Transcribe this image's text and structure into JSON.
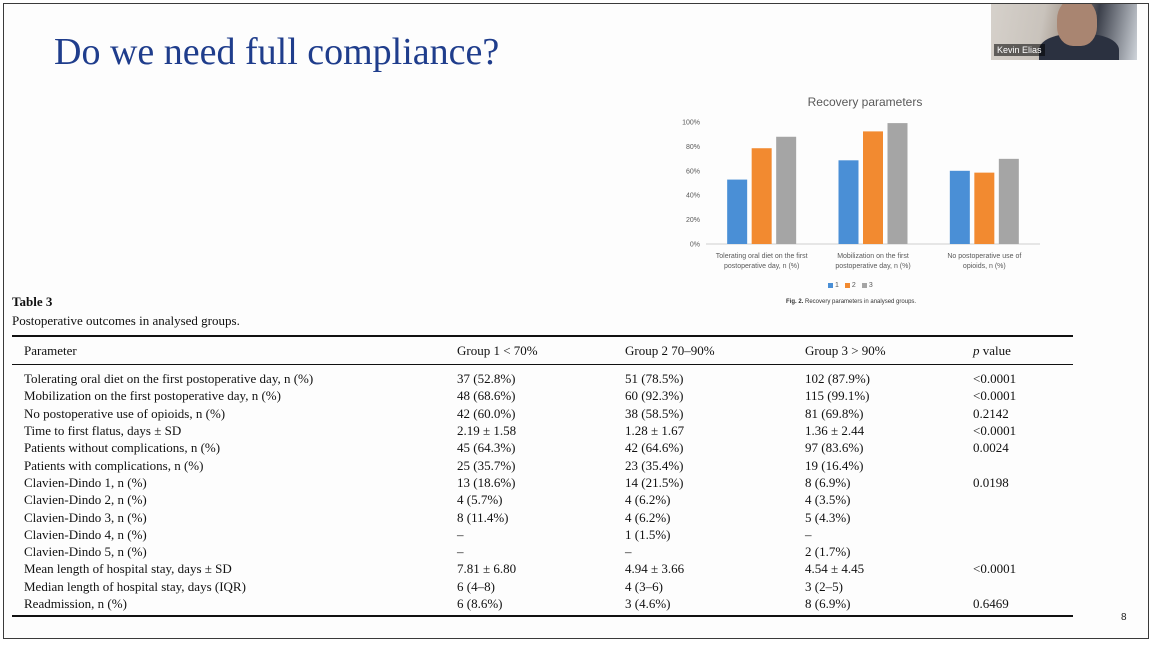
{
  "slide": {
    "title": "Do we need full compliance?",
    "page_number": "8"
  },
  "video": {
    "participant_name": "Kevin Elias"
  },
  "chart_data": {
    "type": "bar",
    "title": "Recovery parameters",
    "categories": [
      [
        "Tolerating oral diet on the first",
        "postoperative day, n (%)"
      ],
      [
        "Mobilization on the first",
        "postoperative day, n (%)"
      ],
      [
        "No postoperative use of",
        "opioids, n (%)"
      ]
    ],
    "series": [
      {
        "name": "1",
        "values": [
          52.8,
          68.6,
          60.0
        ],
        "color": "#4a8fd6"
      },
      {
        "name": "2",
        "values": [
          78.5,
          92.3,
          58.5
        ],
        "color": "#f28a30"
      },
      {
        "name": "3",
        "values": [
          87.9,
          99.1,
          69.8
        ],
        "color": "#a5a5a5"
      }
    ],
    "ylim": [
      0,
      100
    ],
    "yticks": [
      "0%",
      "20%",
      "40%",
      "60%",
      "80%",
      "100%"
    ],
    "grid": false,
    "legend": "bottom-center",
    "caption_label": "Fig. 2.",
    "caption_text": "Recovery parameters in analysed groups."
  },
  "table": {
    "label": "Table 3",
    "caption": "Postoperative outcomes in analysed groups.",
    "headers": {
      "parameter": "Parameter",
      "group1": "Group 1 < 70%",
      "group2": "Group 2 70–90%",
      "group3": "Group 3 > 90%",
      "pvalue_italic": "p",
      "pvalue_rest": "value"
    },
    "rows": [
      [
        "Tolerating oral diet on the first postoperative day, n (%)",
        "37 (52.8%)",
        "51 (78.5%)",
        "102 (87.9%)",
        "<0.0001"
      ],
      [
        "Mobilization on the first postoperative day, n (%)",
        "48 (68.6%)",
        "60 (92.3%)",
        "115 (99.1%)",
        "<0.0001"
      ],
      [
        "No postoperative use of opioids, n (%)",
        "42 (60.0%)",
        "38 (58.5%)",
        "81 (69.8%)",
        "0.2142"
      ],
      [
        "Time to first flatus, days ± SD",
        "2.19 ± 1.58",
        "1.28 ± 1.67",
        "1.36 ± 2.44",
        "<0.0001"
      ],
      [
        "Patients without complications, n (%)",
        "45 (64.3%)",
        "42 (64.6%)",
        "97 (83.6%)",
        "0.0024"
      ],
      [
        "Patients with complications, n (%)",
        "25 (35.7%)",
        "23 (35.4%)",
        "19 (16.4%)",
        ""
      ],
      [
        "Clavien-Dindo 1, n (%)",
        "13 (18.6%)",
        "14 (21.5%)",
        "8 (6.9%)",
        "0.0198"
      ],
      [
        "Clavien-Dindo 2, n (%)",
        "4 (5.7%)",
        "4 (6.2%)",
        "4 (3.5%)",
        ""
      ],
      [
        "Clavien-Dindo 3, n (%)",
        "8 (11.4%)",
        "4 (6.2%)",
        "5 (4.3%)",
        ""
      ],
      [
        "Clavien-Dindo 4, n (%)",
        "–",
        "1 (1.5%)",
        "–",
        ""
      ],
      [
        "Clavien-Dindo 5, n (%)",
        "–",
        "–",
        "2 (1.7%)",
        ""
      ],
      [
        "Mean length of hospital stay, days ± SD",
        "7.81 ± 6.80",
        "4.94 ± 3.66",
        "4.54 ± 4.45",
        "<0.0001"
      ],
      [
        "Median length of hospital stay, days (IQR)",
        "6 (4–8)",
        "4 (3–6)",
        "3 (2–5)",
        ""
      ],
      [
        "Readmission, n (%)",
        "6 (8.6%)",
        "3 (4.6%)",
        "8 (6.9%)",
        "0.6469"
      ]
    ]
  }
}
